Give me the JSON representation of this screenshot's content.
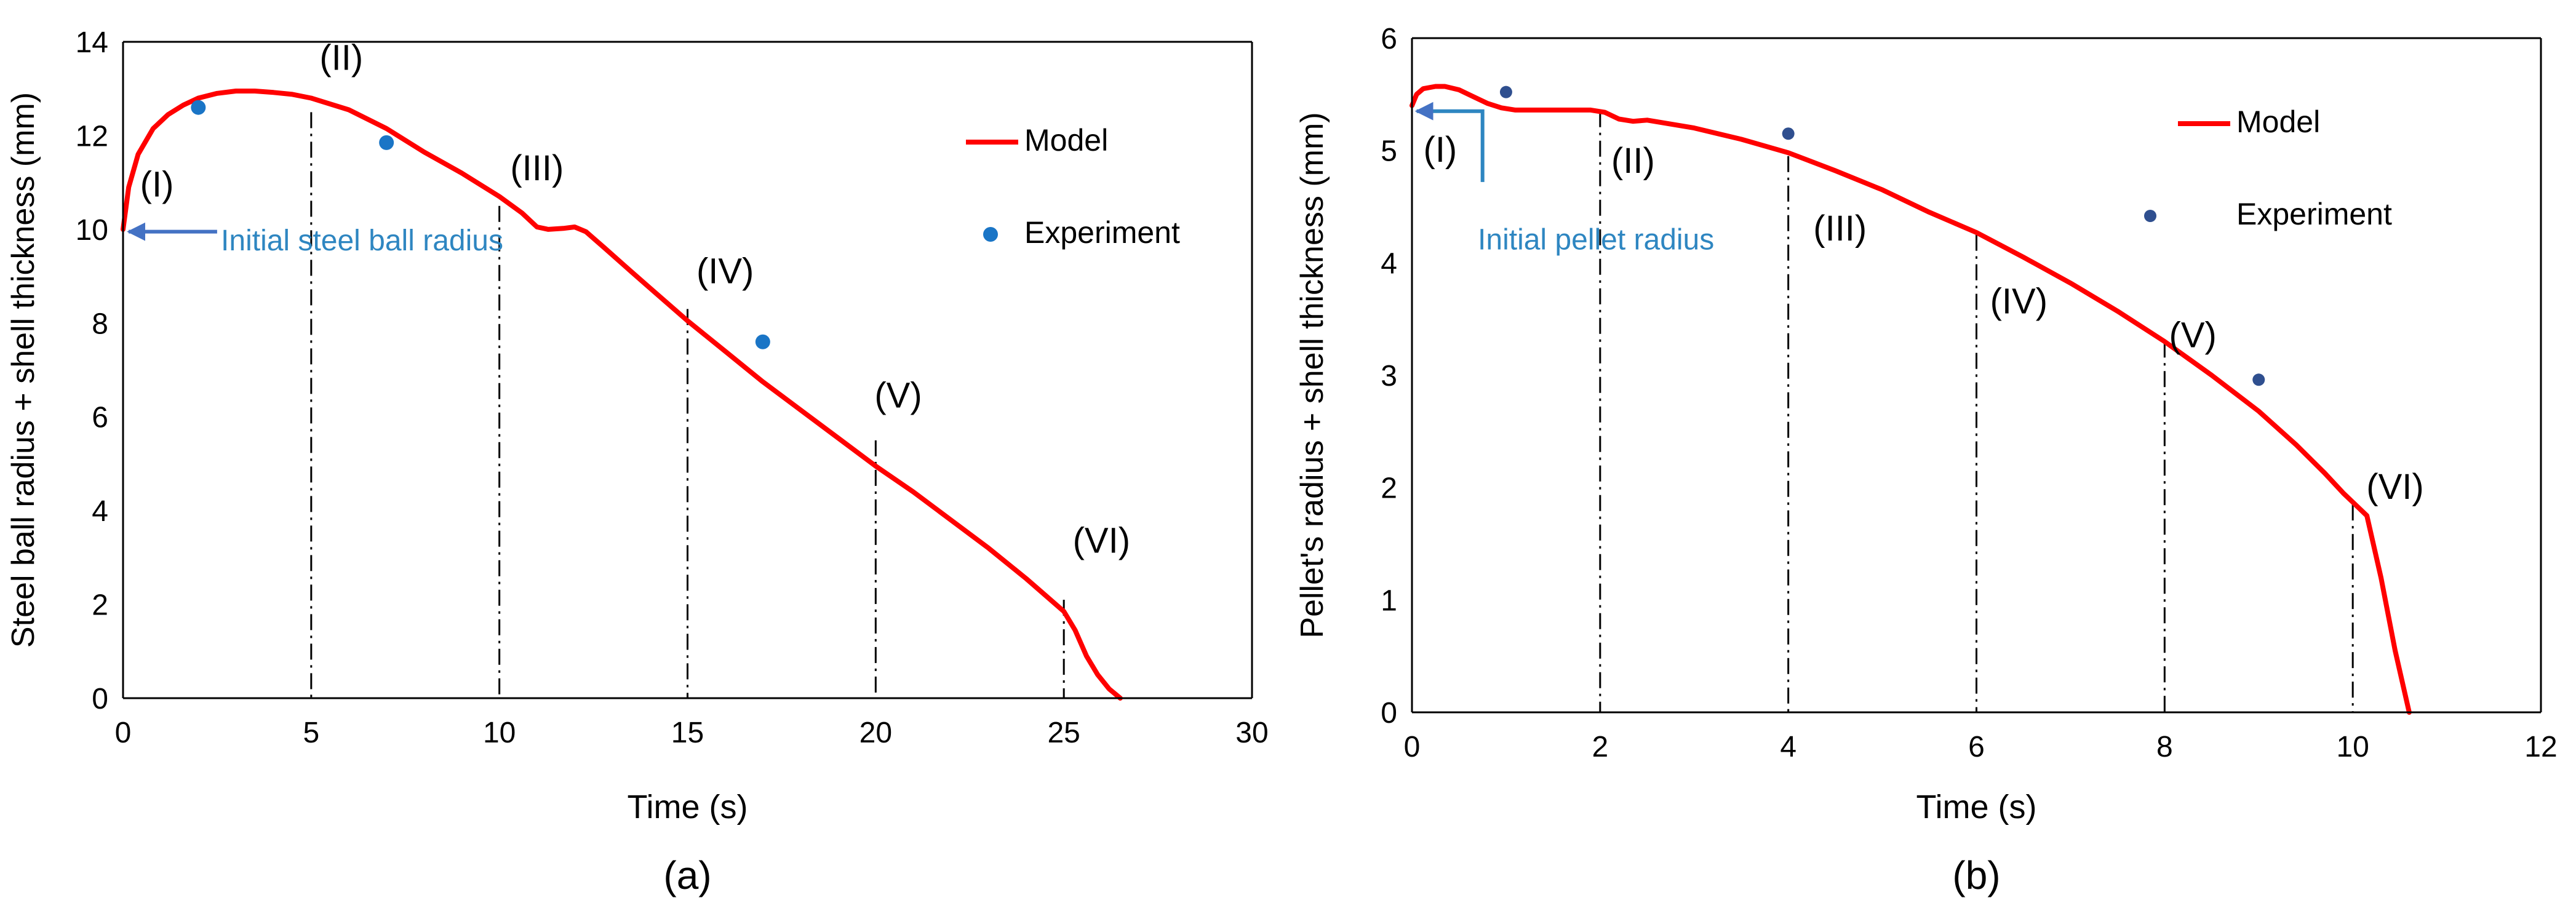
{
  "chart_data": [
    {
      "type": "line",
      "panel_caption": "(a)",
      "xlabel": "Time (s)",
      "ylabel": "Steel ball radius + shell thickness (mm)",
      "xlim": [
        0,
        30
      ],
      "ylim": [
        0,
        14
      ],
      "xticks": [
        0,
        5,
        10,
        15,
        20,
        25,
        30
      ],
      "yticks": [
        0,
        2,
        4,
        6,
        8,
        10,
        12,
        14
      ],
      "grid": false,
      "legend_position": "top-right",
      "series": [
        {
          "name": "Model",
          "kind": "line",
          "color": "#ff0000",
          "x": [
            0,
            0.15,
            0.4,
            0.8,
            1.2,
            1.6,
            2.0,
            2.5,
            3.0,
            3.5,
            4.0,
            4.5,
            5.0,
            6.0,
            7.0,
            8.0,
            9.0,
            10.0,
            10.6,
            11.0,
            11.3,
            11.7,
            12.0,
            12.3,
            12.8,
            13.5,
            14.0,
            15.0,
            16.0,
            17.0,
            18.0,
            19.0,
            20.0,
            21.0,
            22.0,
            23.0,
            24.0,
            24.5,
            25.0,
            25.3,
            25.6,
            25.9,
            26.2,
            26.5
          ],
          "y": [
            10.0,
            10.9,
            11.6,
            12.15,
            12.45,
            12.65,
            12.8,
            12.9,
            12.95,
            12.95,
            12.92,
            12.88,
            12.8,
            12.55,
            12.15,
            11.65,
            11.2,
            10.7,
            10.35,
            10.05,
            10.0,
            10.02,
            10.05,
            9.95,
            9.6,
            9.1,
            8.75,
            8.05,
            7.4,
            6.75,
            6.15,
            5.55,
            4.95,
            4.4,
            3.8,
            3.2,
            2.55,
            2.2,
            1.85,
            1.45,
            0.9,
            0.5,
            0.2,
            0.0
          ]
        },
        {
          "name": "Experiment",
          "kind": "scatter",
          "color": "#1a75c6",
          "x": [
            2,
            7,
            17
          ],
          "y": [
            12.6,
            11.85,
            7.6
          ]
        }
      ],
      "phase_lines": [
        {
          "x": 5,
          "y_top": 12.5,
          "label": "(II)",
          "label_x": 5.8,
          "label_y": 13.4
        },
        {
          "x": 10,
          "y_top": 10.5,
          "label": "(III)",
          "label_x": 11.0,
          "label_y": 11.05
        },
        {
          "x": 15,
          "y_top": 8.3,
          "label": "(IV)",
          "label_x": 16.0,
          "label_y": 8.85
        },
        {
          "x": 20,
          "y_top": 5.5,
          "label": "(V)",
          "label_x": 20.6,
          "label_y": 6.2
        },
        {
          "x": 25,
          "y_top": 2.1,
          "label": "(VI)",
          "label_x": 26.0,
          "label_y": 3.1
        }
      ],
      "start_label": {
        "text": "(I)",
        "x": 0.9,
        "y": 10.7
      },
      "annotation": {
        "text": "Initial steel ball radius",
        "arrow_from": [
          2.5,
          9.95
        ],
        "arrow_to": [
          0.15,
          9.95
        ],
        "text_x": 2.6,
        "text_y": 9.55
      }
    },
    {
      "type": "line",
      "panel_caption": "(b)",
      "xlabel": "Time (s)",
      "ylabel": "Pellet's radius + shell thickness (mm)",
      "xlim": [
        0,
        12
      ],
      "ylim": [
        0,
        6
      ],
      "xticks": [
        0,
        2,
        4,
        6,
        8,
        10,
        12
      ],
      "yticks": [
        0,
        1,
        2,
        3,
        4,
        5,
        6
      ],
      "grid": false,
      "legend_position": "top-right",
      "series": [
        {
          "name": "Model",
          "kind": "line",
          "color": "#ff0000",
          "x": [
            0,
            0.05,
            0.12,
            0.25,
            0.35,
            0.5,
            0.65,
            0.8,
            0.95,
            1.1,
            1.3,
            1.6,
            1.9,
            2.05,
            2.2,
            2.35,
            2.5,
            3.0,
            3.5,
            4.0,
            4.5,
            5.0,
            5.5,
            6.0,
            6.5,
            7.0,
            7.5,
            8.0,
            8.5,
            9.0,
            9.4,
            9.7,
            9.9,
            10.0,
            10.15,
            10.3,
            10.45,
            10.6
          ],
          "y": [
            5.4,
            5.5,
            5.55,
            5.57,
            5.57,
            5.54,
            5.48,
            5.42,
            5.38,
            5.36,
            5.36,
            5.36,
            5.36,
            5.34,
            5.28,
            5.26,
            5.27,
            5.2,
            5.1,
            4.98,
            4.82,
            4.65,
            4.45,
            4.27,
            4.05,
            3.82,
            3.57,
            3.3,
            3.0,
            2.68,
            2.38,
            2.13,
            1.95,
            1.87,
            1.75,
            1.2,
            0.55,
            0.0
          ]
        },
        {
          "name": "Experiment",
          "kind": "scatter",
          "color": "#2f4f8f",
          "x": [
            1,
            4,
            9
          ],
          "y": [
            5.52,
            5.15,
            2.96
          ]
        }
      ],
      "phase_lines": [
        {
          "x": 0,
          "y_top": 5.4,
          "label": null
        },
        {
          "x": 2,
          "y_top": 5.35,
          "label": "(II)",
          "label_x": 2.35,
          "label_y": 4.8
        },
        {
          "x": 4,
          "y_top": 4.95,
          "label": "(III)",
          "label_x": 4.55,
          "label_y": 4.2
        },
        {
          "x": 6,
          "y_top": 4.25,
          "label": "(IV)",
          "label_x": 6.45,
          "label_y": 3.55
        },
        {
          "x": 8,
          "y_top": 3.3,
          "label": "(V)",
          "label_x": 8.3,
          "label_y": 3.25
        },
        {
          "x": 10,
          "y_top": 1.85,
          "label": "(VI)",
          "label_x": 10.45,
          "label_y": 1.9
        }
      ],
      "start_label": {
        "text": "(I)",
        "x": 0.3,
        "y": 4.9
      },
      "annotation": {
        "text": "Initial pellet radius",
        "arrow_from": [
          0.75,
          4.72
        ],
        "arrow_to": [
          0.05,
          5.35
        ],
        "text_x": 0.7,
        "text_y": 4.12
      }
    }
  ]
}
